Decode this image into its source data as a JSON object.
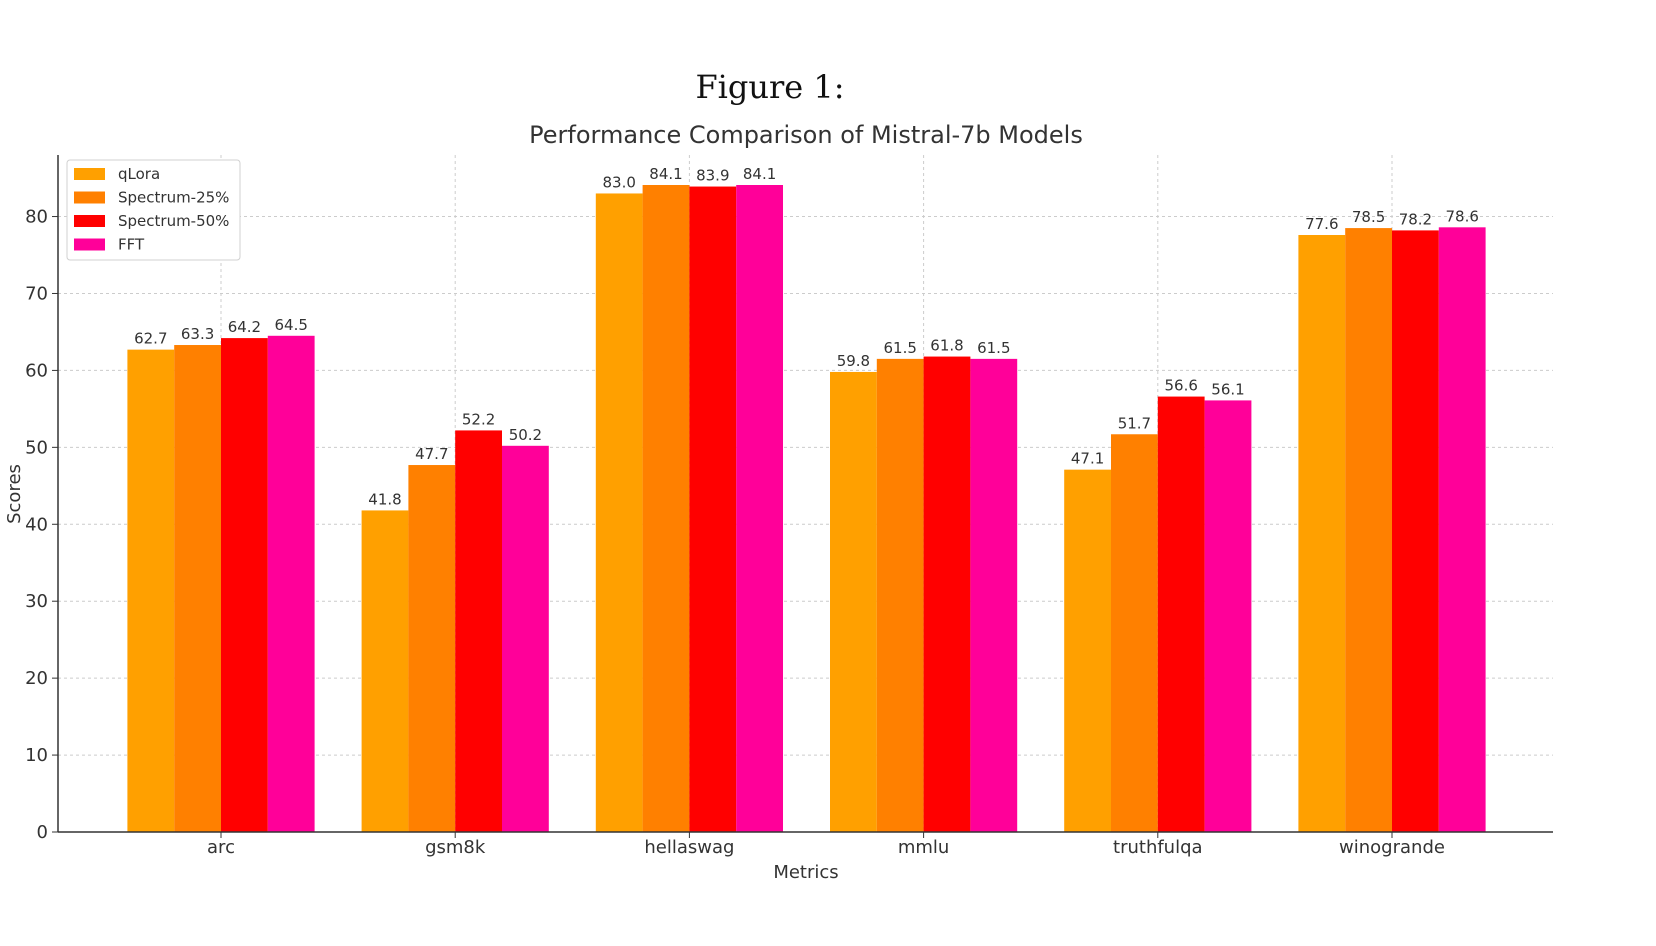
{
  "figure_caption": "Figure 1:",
  "chart_data": {
    "type": "bar",
    "title": "Performance Comparison of Mistral-7b Models",
    "xlabel": "Metrics",
    "ylabel": "Scores",
    "ylim": [
      0,
      88
    ],
    "yticks": [
      0,
      10,
      20,
      30,
      40,
      50,
      60,
      70,
      80
    ],
    "grid": true,
    "legend_position": "top-left",
    "categories": [
      "arc",
      "gsm8k",
      "hellaswag",
      "mmlu",
      "truthfulqa",
      "winogrande"
    ],
    "series": [
      {
        "name": "qLora",
        "color": "#FFA000",
        "values": [
          62.7,
          41.8,
          83.0,
          59.8,
          47.1,
          77.6
        ]
      },
      {
        "name": "Spectrum-25%",
        "color": "#FF8000",
        "values": [
          63.3,
          47.7,
          84.1,
          61.5,
          51.7,
          78.5
        ]
      },
      {
        "name": "Spectrum-50%",
        "color": "#FF0000",
        "values": [
          64.2,
          52.2,
          83.9,
          61.8,
          56.6,
          78.2
        ]
      },
      {
        "name": "FFT",
        "color": "#FF0099",
        "values": [
          64.5,
          50.2,
          84.1,
          61.5,
          56.1,
          78.6
        ]
      }
    ]
  }
}
